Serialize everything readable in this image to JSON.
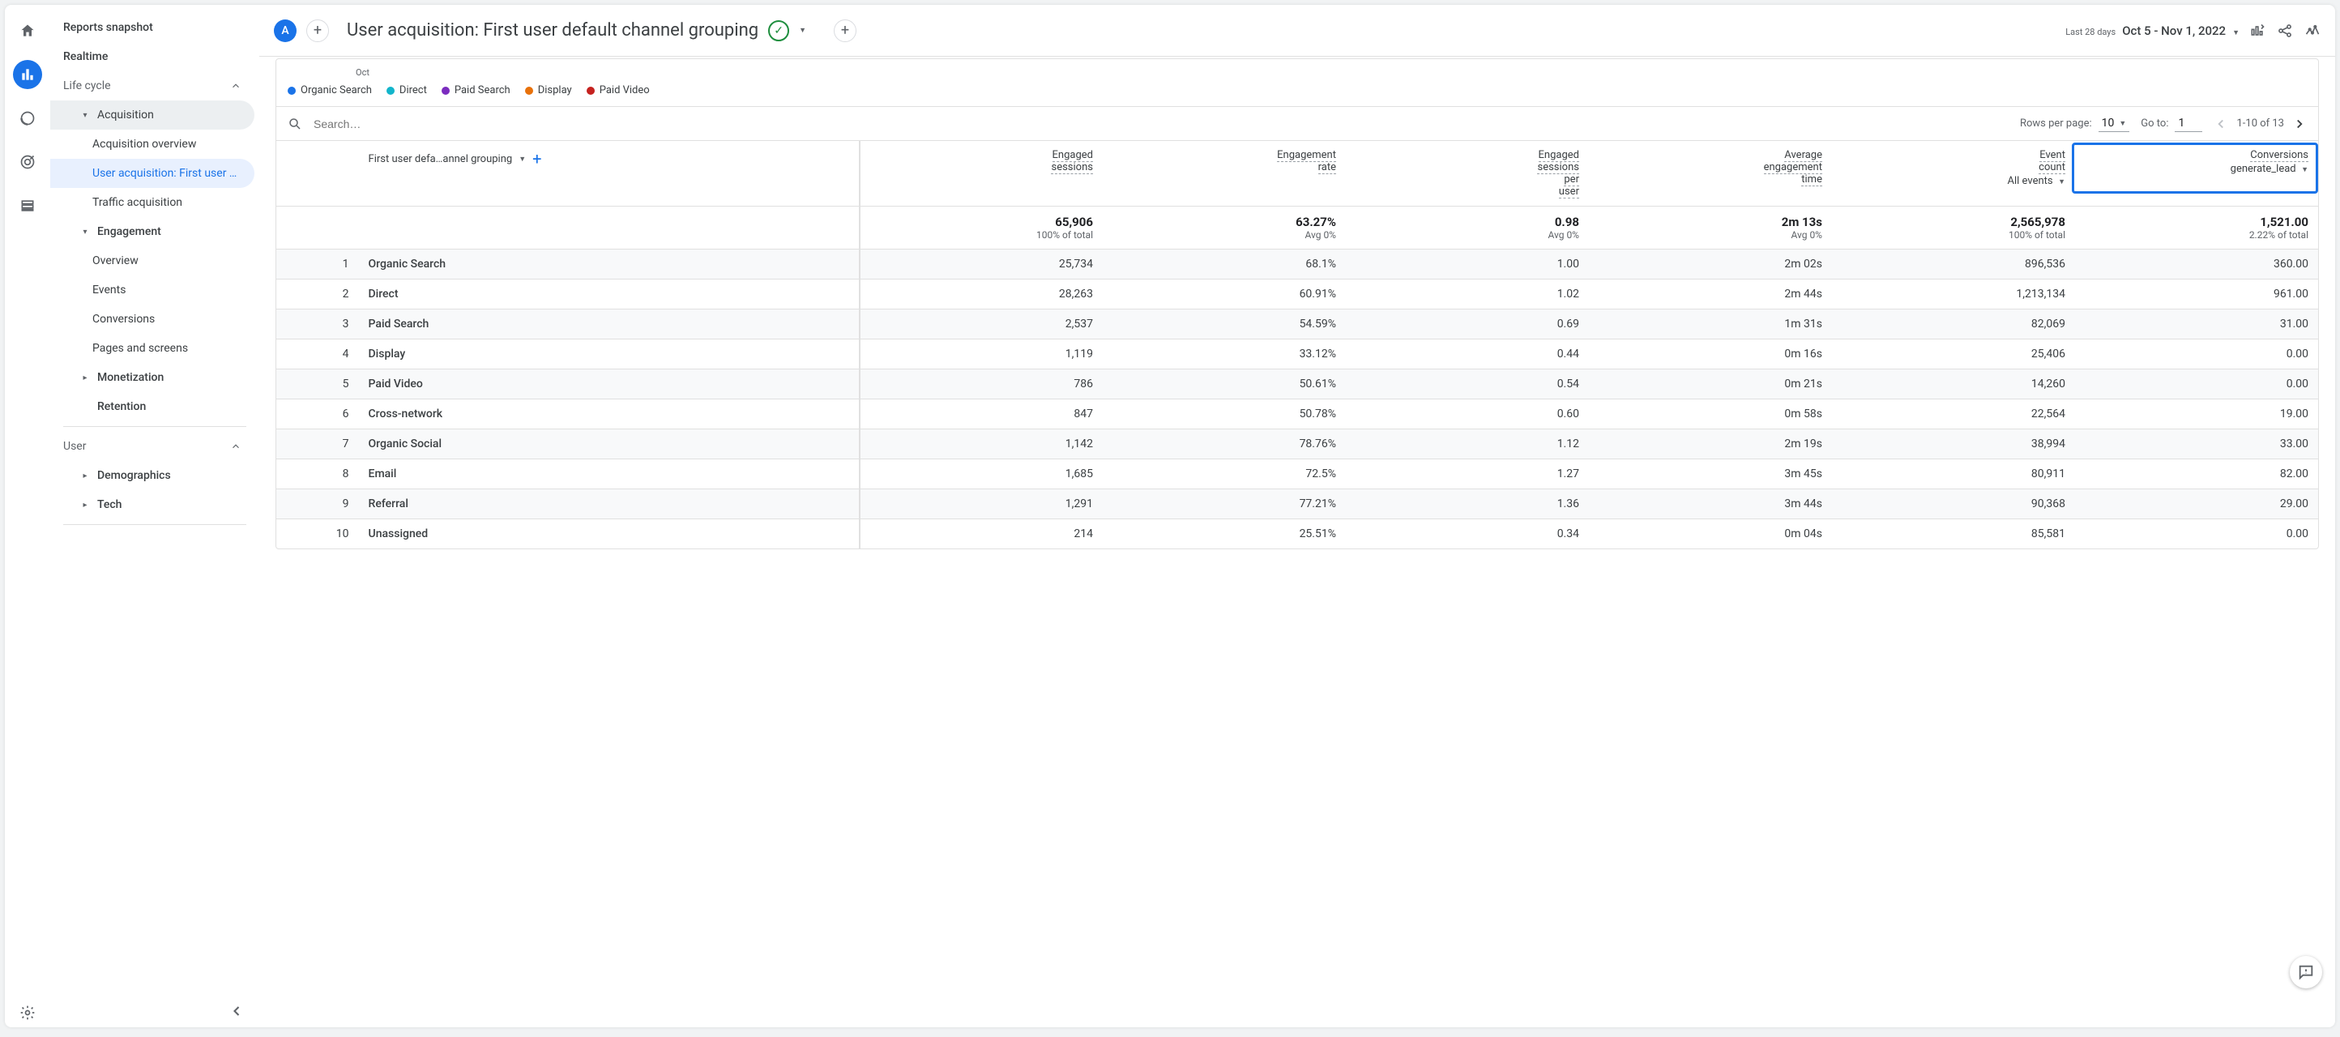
{
  "rail": {
    "active_index": 1
  },
  "sidebar": {
    "top": [
      {
        "label": "Reports snapshot"
      },
      {
        "label": "Realtime"
      }
    ],
    "sections": [
      {
        "label": "Life cycle",
        "groups": [
          {
            "label": "Acquisition",
            "expanded": true,
            "items": [
              {
                "label": "Acquisition overview"
              },
              {
                "label": "User acquisition: First user …",
                "selected": true
              },
              {
                "label": "Traffic acquisition"
              }
            ]
          },
          {
            "label": "Engagement",
            "expanded": true,
            "items": [
              {
                "label": "Overview"
              },
              {
                "label": "Events"
              },
              {
                "label": "Conversions"
              },
              {
                "label": "Pages and screens"
              }
            ]
          },
          {
            "label": "Monetization",
            "expanded": false
          },
          {
            "label": "Retention",
            "expanded": null
          }
        ]
      },
      {
        "label": "User",
        "groups": [
          {
            "label": "Demographics",
            "expanded": false
          },
          {
            "label": "Tech",
            "expanded": false
          }
        ]
      }
    ]
  },
  "topbar": {
    "chip": "A",
    "title": "User acquisition: First user default channel grouping",
    "date_label": "Last 28 days",
    "date_value": "Oct 5 - Nov 1, 2022"
  },
  "chart": {
    "axis_label": "Oct",
    "legend": [
      {
        "label": "Organic Search",
        "color": "#1a73e8"
      },
      {
        "label": "Direct",
        "color": "#12b5cb"
      },
      {
        "label": "Paid Search",
        "color": "#7b2cbf"
      },
      {
        "label": "Display",
        "color": "#e8710a"
      },
      {
        "label": "Paid Video",
        "color": "#c5221f"
      }
    ]
  },
  "table": {
    "search_placeholder": "Search…",
    "rows_per_page_label": "Rows per page:",
    "rows_per_page_value": "10",
    "goto_label": "Go to:",
    "goto_value": "1",
    "pager_text": "1-10 of 13",
    "dimension_label": "First user defa…annel grouping",
    "columns": [
      {
        "header": "Engaged sessions"
      },
      {
        "header": "Engagement rate"
      },
      {
        "header": "Engaged sessions per user"
      },
      {
        "header": "Average engagement time"
      },
      {
        "header": "Event count",
        "sub": "All events"
      },
      {
        "header": "Conversions",
        "sub": "generate_lead",
        "highlighted": true
      }
    ],
    "totals": [
      {
        "value": "65,906",
        "sub": "100% of total"
      },
      {
        "value": "63.27%",
        "sub": "Avg 0%"
      },
      {
        "value": "0.98",
        "sub": "Avg 0%"
      },
      {
        "value": "2m 13s",
        "sub": "Avg 0%"
      },
      {
        "value": "2,565,978",
        "sub": "100% of total"
      },
      {
        "value": "1,521.00",
        "sub": "2.22% of total"
      }
    ],
    "rows": [
      {
        "n": 1,
        "dim": "Organic Search",
        "v": [
          "25,734",
          "68.1%",
          "1.00",
          "2m 02s",
          "896,536",
          "360.00"
        ]
      },
      {
        "n": 2,
        "dim": "Direct",
        "v": [
          "28,263",
          "60.91%",
          "1.02",
          "2m 44s",
          "1,213,134",
          "961.00"
        ]
      },
      {
        "n": 3,
        "dim": "Paid Search",
        "v": [
          "2,537",
          "54.59%",
          "0.69",
          "1m 31s",
          "82,069",
          "31.00"
        ]
      },
      {
        "n": 4,
        "dim": "Display",
        "v": [
          "1,119",
          "33.12%",
          "0.44",
          "0m 16s",
          "25,406",
          "0.00"
        ]
      },
      {
        "n": 5,
        "dim": "Paid Video",
        "v": [
          "786",
          "50.61%",
          "0.54",
          "0m 21s",
          "14,260",
          "0.00"
        ]
      },
      {
        "n": 6,
        "dim": "Cross-network",
        "v": [
          "847",
          "50.78%",
          "0.60",
          "0m 58s",
          "22,564",
          "19.00"
        ]
      },
      {
        "n": 7,
        "dim": "Organic Social",
        "v": [
          "1,142",
          "78.76%",
          "1.12",
          "2m 19s",
          "38,994",
          "33.00"
        ]
      },
      {
        "n": 8,
        "dim": "Email",
        "v": [
          "1,685",
          "72.5%",
          "1.27",
          "3m 45s",
          "80,911",
          "82.00"
        ]
      },
      {
        "n": 9,
        "dim": "Referral",
        "v": [
          "1,291",
          "77.21%",
          "1.36",
          "3m 44s",
          "90,368",
          "29.00"
        ]
      },
      {
        "n": 10,
        "dim": "Unassigned",
        "v": [
          "214",
          "25.51%",
          "0.34",
          "0m 04s",
          "85,581",
          "0.00"
        ]
      }
    ],
    "col_widths": {
      "idx": 44,
      "dim": 268,
      "metric": 130
    },
    "highlight_col_index": 5,
    "colors": {
      "highlight_border": "#1a73e8",
      "row_stripe": "#f8f9fa",
      "border": "#e0e0e0",
      "text_muted": "#5f6368"
    }
  }
}
